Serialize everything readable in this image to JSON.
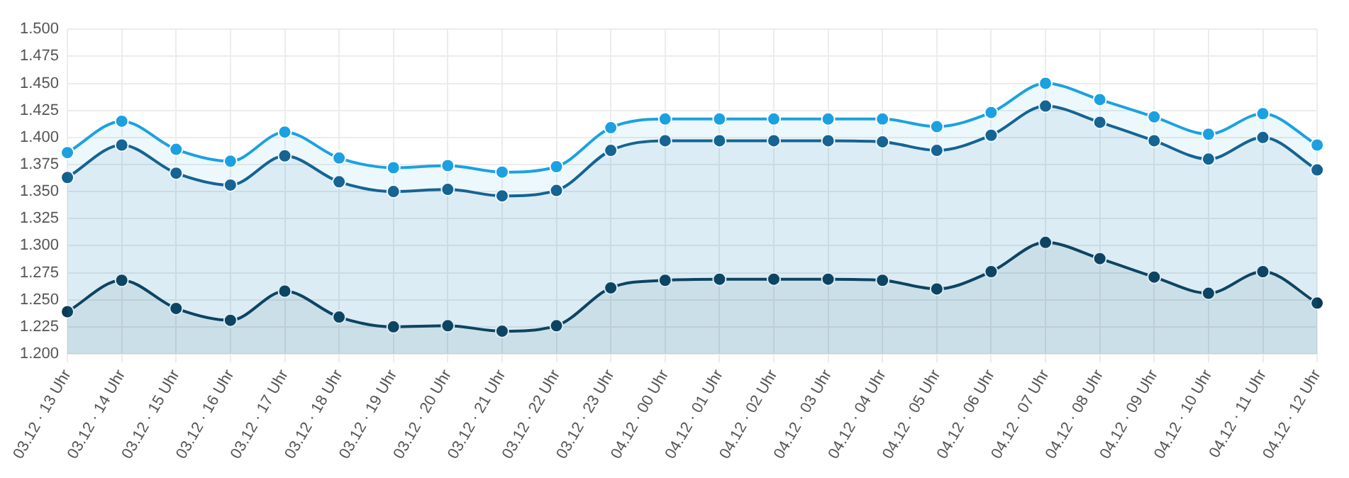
{
  "chart_data": {
    "type": "area",
    "categories": [
      "03.12 · 13 Uhr",
      "03.12 · 14 Uhr",
      "03.12 · 15 Uhr",
      "03.12 · 16 Uhr",
      "03.12 · 17 Uhr",
      "03.12 · 18 Uhr",
      "03.12 · 19 Uhr",
      "03.12 · 20 Uhr",
      "03.12 · 21 Uhr",
      "03.12 · 22 Uhr",
      "03.12 · 23 Uhr",
      "04.12 · 00 Uhr",
      "04.12 · 01 Uhr",
      "04.12 · 02 Uhr",
      "04.12 · 03 Uhr",
      "04.12 · 04 Uhr",
      "04.12 · 05 Uhr",
      "04.12 · 06 Uhr",
      "04.12 · 07 Uhr",
      "04.12 · 08 Uhr",
      "04.12 · 09 Uhr",
      "04.12 · 10 Uhr",
      "04.12 · 11 Uhr",
      "04.12 · 12 Uhr"
    ],
    "series": [
      {
        "color": "#1ba1e2",
        "values": [
          1.386,
          1.415,
          1.389,
          1.378,
          1.405,
          1.381,
          1.372,
          1.374,
          1.368,
          1.373,
          1.409,
          1.417,
          1.417,
          1.417,
          1.417,
          1.417,
          1.41,
          1.423,
          1.45,
          1.435,
          1.419,
          1.403,
          1.422,
          1.393
        ]
      },
      {
        "color": "#155f8c",
        "values": [
          1.363,
          1.393,
          1.367,
          1.356,
          1.383,
          1.359,
          1.35,
          1.352,
          1.346,
          1.351,
          1.388,
          1.397,
          1.397,
          1.397,
          1.397,
          1.396,
          1.388,
          1.402,
          1.429,
          1.414,
          1.397,
          1.38,
          1.4,
          1.37
        ]
      },
      {
        "color": "#0d3a52",
        "values": [
          1.239,
          1.268,
          1.242,
          1.231,
          1.258,
          1.234,
          1.225,
          1.226,
          1.221,
          1.226,
          1.261,
          1.268,
          1.269,
          1.269,
          1.269,
          1.268,
          1.26,
          1.276,
          1.303,
          1.288,
          1.271,
          1.256,
          1.276,
          1.247
        ]
      }
    ],
    "ylim": [
      1.2,
      1.5
    ],
    "yticks": [
      {
        "value": 1.2,
        "label": "1.200"
      },
      {
        "value": 1.225,
        "label": "1.225"
      },
      {
        "value": 1.25,
        "label": "1.250"
      },
      {
        "value": 1.275,
        "label": "1.275"
      },
      {
        "value": 1.3,
        "label": "1.300"
      },
      {
        "value": 1.325,
        "label": "1.325"
      },
      {
        "value": 1.35,
        "label": "1.350"
      },
      {
        "value": 1.375,
        "label": "1.375"
      },
      {
        "value": 1.4,
        "label": "1.400"
      },
      {
        "value": 1.425,
        "label": "1.425"
      },
      {
        "value": 1.45,
        "label": "1.450"
      },
      {
        "value": 1.475,
        "label": "1.475"
      },
      {
        "value": 1.5,
        "label": "1.500"
      }
    ],
    "grid": true,
    "legend": false,
    "marker": "circle",
    "line_style": "solid"
  }
}
